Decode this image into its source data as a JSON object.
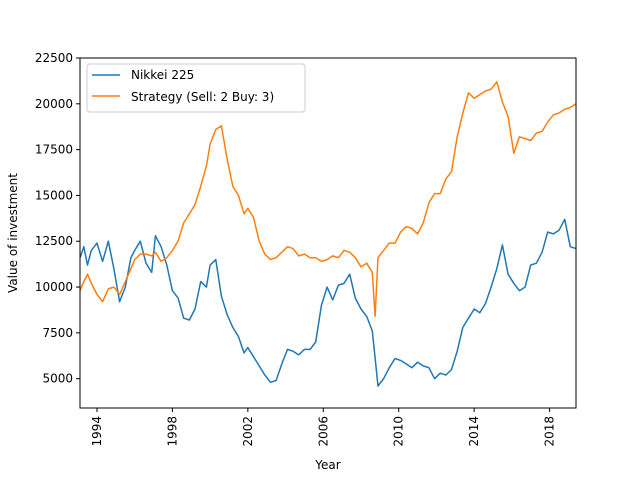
{
  "chart_data": {
    "type": "line",
    "xlabel": "Year",
    "ylabel": "Value of investment",
    "xlim": [
      1993.1,
      2019.4
    ],
    "ylim": [
      3400,
      22500
    ],
    "xticks": [
      1994,
      1998,
      2002,
      2006,
      2010,
      2014,
      2018
    ],
    "xtick_labels": [
      "1994",
      "1998",
      "2002",
      "2006",
      "2010",
      "2014",
      "2018"
    ],
    "yticks": [
      5000,
      7500,
      10000,
      12500,
      15000,
      17500,
      20000,
      22500
    ],
    "ytick_labels": [
      "5000",
      "7500",
      "10000",
      "12500",
      "15000",
      "17500",
      "20000",
      "22500"
    ],
    "grid": false,
    "legend_position": "top-left",
    "series": [
      {
        "name": "Nikkei 225",
        "color": "#1f77b4",
        "x": [
          1993.1,
          1993.3,
          1993.5,
          1993.7,
          1994.0,
          1994.3,
          1994.6,
          1994.9,
          1995.2,
          1995.5,
          1995.8,
          1996.0,
          1996.3,
          1996.6,
          1996.9,
          1997.1,
          1997.4,
          1997.7,
          1998.0,
          1998.3,
          1998.6,
          1998.9,
          1999.2,
          1999.5,
          1999.8,
          2000.0,
          2000.3,
          2000.6,
          2000.9,
          2001.2,
          2001.5,
          2001.8,
          2002.0,
          2002.3,
          2002.6,
          2002.9,
          2003.2,
          2003.5,
          2003.8,
          2004.1,
          2004.4,
          2004.7,
          2005.0,
          2005.3,
          2005.6,
          2005.9,
          2006.2,
          2006.5,
          2006.8,
          2007.1,
          2007.4,
          2007.7,
          2008.0,
          2008.3,
          2008.6,
          2008.9,
          2009.2,
          2009.5,
          2009.8,
          2010.1,
          2010.4,
          2010.7,
          2011.0,
          2011.3,
          2011.6,
          2011.9,
          2012.2,
          2012.5,
          2012.8,
          2013.1,
          2013.4,
          2013.7,
          2014.0,
          2014.3,
          2014.6,
          2014.9,
          2015.2,
          2015.5,
          2015.8,
          2016.1,
          2016.4,
          2016.7,
          2017.0,
          2017.3,
          2017.6,
          2017.9,
          2018.2,
          2018.5,
          2018.8,
          2019.1,
          2019.4
        ],
        "y": [
          11600,
          12200,
          11200,
          12000,
          12400,
          11400,
          12500,
          11000,
          9200,
          10000,
          11600,
          12000,
          12500,
          11300,
          10800,
          12800,
          12200,
          11200,
          9800,
          9400,
          8300,
          8200,
          8800,
          10300,
          10000,
          11200,
          11500,
          9500,
          8500,
          7800,
          7300,
          6400,
          6700,
          6200,
          5700,
          5200,
          4800,
          4900,
          5800,
          6600,
          6500,
          6300,
          6600,
          6600,
          7000,
          9000,
          10000,
          9300,
          10100,
          10200,
          10700,
          9400,
          8800,
          8400,
          7600,
          4600,
          5000,
          5600,
          6100,
          6000,
          5800,
          5600,
          5900,
          5700,
          5600,
          5000,
          5300,
          5200,
          5500,
          6500,
          7800,
          8300,
          8800,
          8600,
          9100,
          10000,
          11000,
          12300,
          10700,
          10200,
          9800,
          10000,
          11200,
          11300,
          11900,
          13000,
          12900,
          13100,
          13700,
          12200,
          12100
        ]
      },
      {
        "name": "Strategy (Sell: 2 Buy: 3)",
        "color": "#ff7f0e",
        "x": [
          1993.1,
          1993.3,
          1993.5,
          1993.7,
          1994.0,
          1994.3,
          1994.6,
          1994.9,
          1995.2,
          1995.5,
          1995.8,
          1996.0,
          1996.3,
          1996.6,
          1996.9,
          1997.1,
          1997.4,
          1997.7,
          1998.0,
          1998.3,
          1998.6,
          1998.9,
          1999.2,
          1999.5,
          1999.8,
          2000.0,
          2000.3,
          2000.6,
          2000.9,
          2001.2,
          2001.5,
          2001.8,
          2002.0,
          2002.3,
          2002.6,
          2002.9,
          2003.2,
          2003.5,
          2003.8,
          2004.1,
          2004.4,
          2004.7,
          2005.0,
          2005.3,
          2005.6,
          2005.9,
          2006.2,
          2006.5,
          2006.8,
          2007.1,
          2007.4,
          2007.7,
          2008.0,
          2008.3,
          2008.6,
          2008.75,
          2008.9,
          2009.2,
          2009.5,
          2009.8,
          2010.1,
          2010.4,
          2010.7,
          2011.0,
          2011.3,
          2011.6,
          2011.9,
          2012.2,
          2012.5,
          2012.8,
          2013.1,
          2013.4,
          2013.7,
          2014.0,
          2014.3,
          2014.6,
          2014.9,
          2015.2,
          2015.5,
          2015.8,
          2016.1,
          2016.4,
          2016.7,
          2017.0,
          2017.3,
          2017.6,
          2017.9,
          2018.2,
          2018.5,
          2018.8,
          2019.1,
          2019.4
        ],
        "y": [
          9800,
          10300,
          10700,
          10200,
          9600,
          9200,
          9900,
          10000,
          9600,
          10300,
          11000,
          11500,
          11800,
          11800,
          11700,
          11900,
          11400,
          11600,
          12000,
          12500,
          13500,
          14000,
          14500,
          15500,
          16600,
          17800,
          18600,
          18800,
          17000,
          15500,
          15000,
          14000,
          14300,
          13800,
          12500,
          11800,
          11500,
          11600,
          11900,
          12200,
          12100,
          11700,
          11800,
          11600,
          11600,
          11400,
          11500,
          11700,
          11600,
          12000,
          11900,
          11600,
          11100,
          11300,
          10800,
          8400,
          11600,
          12000,
          12400,
          12400,
          13000,
          13300,
          13200,
          12900,
          13500,
          14600,
          15100,
          15100,
          15900,
          16300,
          18200,
          19500,
          20600,
          20300,
          20500,
          20700,
          20800,
          21200,
          20100,
          19300,
          17300,
          18200,
          18100,
          18000,
          18400,
          18500,
          19000,
          19400,
          19500,
          19700,
          19800,
          20000
        ]
      }
    ]
  }
}
